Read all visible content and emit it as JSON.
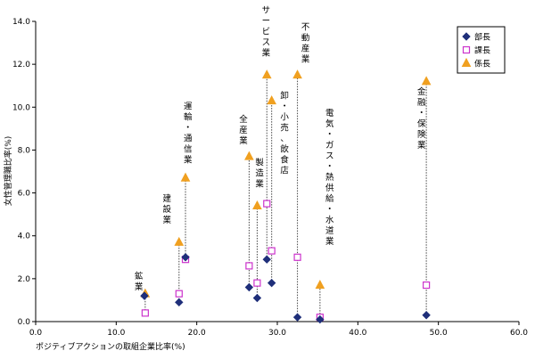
{
  "chart_data": {
    "type": "scatter",
    "xlabel": "ポジティブアクションの取組企業比率(%)",
    "ylabel": "女性管理職比率(%)",
    "xlim": [
      0,
      60
    ],
    "ylim": [
      0,
      14
    ],
    "x_ticks": [
      "0.0",
      "10.0",
      "20.0",
      "30.0",
      "40.0",
      "50.0",
      "60.0"
    ],
    "y_ticks": [
      "0.0",
      "2.0",
      "4.0",
      "6.0",
      "8.0",
      "10.0",
      "12.0",
      "14.0"
    ],
    "grid": "none",
    "legend_position": "top-right",
    "series": [
      {
        "name": "部長",
        "marker": "diamond",
        "color": "#1f2f7a",
        "points": [
          [
            13.5,
            1.2
          ],
          [
            17.8,
            0.9
          ],
          [
            18.6,
            3.0
          ],
          [
            26.5,
            1.6
          ],
          [
            27.5,
            1.1
          ],
          [
            28.7,
            2.9
          ],
          [
            29.3,
            1.8
          ],
          [
            32.5,
            0.2
          ],
          [
            35.3,
            0.1
          ],
          [
            48.5,
            0.3
          ]
        ]
      },
      {
        "name": "課長",
        "marker": "square",
        "color": "#cc33cc",
        "points": [
          [
            13.6,
            0.4
          ],
          [
            17.8,
            1.3
          ],
          [
            18.6,
            2.9
          ],
          [
            26.5,
            2.6
          ],
          [
            27.5,
            1.8
          ],
          [
            28.7,
            5.5
          ],
          [
            29.3,
            3.3
          ],
          [
            32.5,
            3.0
          ],
          [
            35.3,
            0.2
          ],
          [
            48.5,
            1.7
          ]
        ]
      },
      {
        "name": "係長",
        "marker": "triangle",
        "color": "#f0a020",
        "points": [
          [
            13.6,
            1.3
          ],
          [
            17.8,
            3.7
          ],
          [
            18.6,
            6.7
          ],
          [
            26.5,
            7.7
          ],
          [
            27.5,
            5.4
          ],
          [
            28.7,
            11.5
          ],
          [
            29.3,
            10.3
          ],
          [
            32.5,
            11.5
          ],
          [
            35.3,
            1.7
          ],
          [
            48.5,
            11.2
          ]
        ]
      }
    ],
    "connectors": [
      {
        "x": 13.6,
        "y_low": 0.4,
        "y_high": 1.3
      },
      {
        "x": 17.8,
        "y_low": 0.9,
        "y_high": 3.7
      },
      {
        "x": 18.6,
        "y_low": 2.9,
        "y_high": 6.7
      },
      {
        "x": 26.5,
        "y_low": 1.6,
        "y_high": 7.7
      },
      {
        "x": 27.5,
        "y_low": 1.1,
        "y_high": 5.4
      },
      {
        "x": 28.7,
        "y_low": 2.9,
        "y_high": 11.5
      },
      {
        "x": 29.3,
        "y_low": 1.8,
        "y_high": 10.3
      },
      {
        "x": 32.5,
        "y_low": 0.2,
        "y_high": 11.5
      },
      {
        "x": 35.3,
        "y_low": 0.1,
        "y_high": 1.7
      },
      {
        "x": 48.5,
        "y_low": 0.3,
        "y_high": 11.2
      }
    ],
    "annotations": [
      {
        "text": "鉱業",
        "x": 12.8,
        "y": 2.0,
        "vertical": true
      },
      {
        "text": "建設業",
        "x": 16.3,
        "y": 5.6,
        "vertical": true
      },
      {
        "text": "運輸・通信業",
        "x": 18.9,
        "y": 9.9,
        "vertical": true
      },
      {
        "text": "全産業",
        "x": 25.8,
        "y": 9.3,
        "vertical": true
      },
      {
        "text": "製造業",
        "x": 27.8,
        "y": 7.3,
        "vertical": true
      },
      {
        "text": "サービス業",
        "x": 28.6,
        "y": 14.4,
        "vertical": true
      },
      {
        "text": "卸・小売、飲食店",
        "x": 30.9,
        "y": 10.4,
        "vertical": true
      },
      {
        "text": "不動産業",
        "x": 33.5,
        "y": 13.6,
        "vertical": true
      },
      {
        "text": "電気・ガス・熱供給・水道業",
        "x": 36.5,
        "y": 9.6,
        "vertical": true
      },
      {
        "text": "金融・保険業",
        "x": 47.9,
        "y": 10.6,
        "vertical": true
      }
    ]
  }
}
